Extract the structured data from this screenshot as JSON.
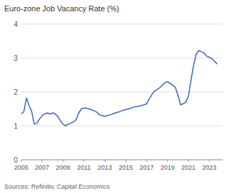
{
  "chart_data": {
    "type": "line",
    "title": "Euro-zone Job Vacancy Rate (%)",
    "source": "Sources: Refinitiv, Capital Economics",
    "color": "#3366cc",
    "grid": true,
    "xlim": [
      2005.0,
      2024.3
    ],
    "xticks": [
      2005,
      2007,
      2009,
      2011,
      2013,
      2015,
      2017,
      2019,
      2021,
      2023
    ],
    "ylim": [
      0,
      4
    ],
    "yticks": [
      0,
      1,
      2,
      3,
      4
    ],
    "x": [
      2005.0,
      2005.25,
      2005.5,
      2005.75,
      2006.0,
      2006.25,
      2006.5,
      2006.75,
      2007.0,
      2007.25,
      2007.5,
      2007.75,
      2008.0,
      2008.25,
      2008.5,
      2008.75,
      2009.0,
      2009.25,
      2009.5,
      2009.75,
      2010.0,
      2010.25,
      2010.5,
      2010.75,
      2011.0,
      2011.25,
      2011.5,
      2011.75,
      2012.0,
      2012.25,
      2012.5,
      2012.75,
      2013.0,
      2013.25,
      2013.5,
      2013.75,
      2014.0,
      2014.25,
      2014.5,
      2014.75,
      2015.0,
      2015.25,
      2015.5,
      2015.75,
      2016.0,
      2016.25,
      2016.5,
      2016.75,
      2017.0,
      2017.25,
      2017.5,
      2017.75,
      2018.0,
      2018.25,
      2018.5,
      2018.75,
      2019.0,
      2019.25,
      2019.5,
      2019.75,
      2020.0,
      2020.25,
      2020.5,
      2020.75,
      2021.0,
      2021.25,
      2021.5,
      2021.75,
      2022.0,
      2022.25,
      2022.5,
      2022.75,
      2023.0,
      2023.25,
      2023.5,
      2023.75
    ],
    "values": [
      1.35,
      1.42,
      1.82,
      1.6,
      1.42,
      1.05,
      1.08,
      1.2,
      1.3,
      1.35,
      1.38,
      1.35,
      1.38,
      1.35,
      1.28,
      1.15,
      1.05,
      1.0,
      1.05,
      1.08,
      1.12,
      1.18,
      1.38,
      1.5,
      1.52,
      1.52,
      1.5,
      1.47,
      1.44,
      1.4,
      1.32,
      1.3,
      1.28,
      1.3,
      1.32,
      1.35,
      1.38,
      1.4,
      1.43,
      1.46,
      1.48,
      1.5,
      1.52,
      1.55,
      1.57,
      1.58,
      1.6,
      1.62,
      1.65,
      1.8,
      1.92,
      2.02,
      2.07,
      2.12,
      2.2,
      2.27,
      2.3,
      2.25,
      2.2,
      2.13,
      1.9,
      1.62,
      1.65,
      1.7,
      1.88,
      2.35,
      2.8,
      3.12,
      3.22,
      3.18,
      3.15,
      3.05,
      3.02,
      2.98,
      2.9,
      2.82
    ]
  }
}
